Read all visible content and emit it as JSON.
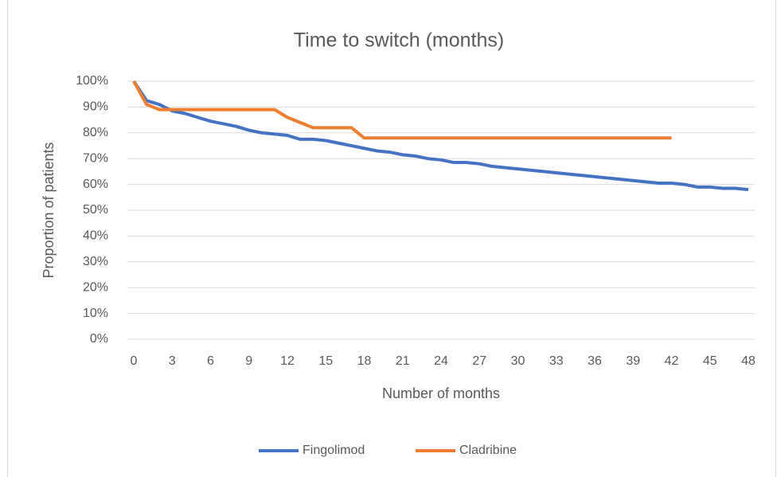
{
  "chart_data": {
    "type": "line",
    "title": "Time to switch (months)",
    "x_label": "Number of months",
    "y_label": "Proportion of patients",
    "x": [
      0,
      1,
      2,
      3,
      4,
      5,
      6,
      7,
      8,
      9,
      10,
      11,
      12,
      13,
      14,
      15,
      16,
      17,
      18,
      19,
      20,
      21,
      22,
      23,
      24,
      25,
      26,
      27,
      28,
      29,
      30,
      31,
      32,
      33,
      34,
      35,
      36,
      37,
      38,
      39,
      40,
      41,
      42,
      43,
      44,
      45,
      46,
      47,
      48
    ],
    "series": [
      {
        "name": "Fingolimod",
        "color": "#4472c4",
        "values": [
          100,
          92.5,
          91,
          88.5,
          87.5,
          86,
          84.5,
          83.5,
          82.5,
          81,
          80,
          79.5,
          79,
          77.5,
          77.5,
          77,
          76,
          75,
          74,
          73,
          72.5,
          71.5,
          71,
          70,
          69.5,
          68.5,
          68.5,
          68,
          67,
          66.5,
          66,
          65.5,
          65,
          64.5,
          64,
          63.5,
          63,
          62.5,
          62,
          61.5,
          61,
          60.5,
          60.5,
          60,
          59,
          59,
          58.5,
          58.5,
          58
        ]
      },
      {
        "name": "Cladribine",
        "color": "#ed7d31",
        "values": [
          100,
          91,
          89,
          89,
          89,
          89,
          89,
          89,
          89,
          89,
          89,
          89,
          86,
          84,
          82,
          82,
          82,
          82,
          78,
          78,
          78,
          78,
          78,
          78,
          78,
          78,
          78,
          78,
          78,
          78,
          78,
          78,
          78,
          78,
          78,
          78,
          78,
          78,
          78,
          78,
          78,
          78,
          78,
          null,
          null,
          null,
          null,
          null,
          null
        ]
      }
    ],
    "xlim": [
      0,
      48
    ],
    "xticks": [
      0,
      3,
      6,
      9,
      12,
      15,
      18,
      21,
      24,
      27,
      30,
      33,
      36,
      39,
      42,
      45,
      48
    ],
    "ylim": [
      0,
      100
    ],
    "yticks": [
      {
        "value": 0,
        "label": "0%"
      },
      {
        "value": 10,
        "label": "10%"
      },
      {
        "value": 20,
        "label": "20%"
      },
      {
        "value": 30,
        "label": "30%"
      },
      {
        "value": 40,
        "label": "40%"
      },
      {
        "value": 50,
        "label": "50%"
      },
      {
        "value": 60,
        "label": "60%"
      },
      {
        "value": 70,
        "label": "70%"
      },
      {
        "value": 80,
        "label": "80%"
      },
      {
        "value": 90,
        "label": "90%"
      },
      {
        "value": 100,
        "label": "100%"
      }
    ],
    "grid": true,
    "legend": "bottom"
  }
}
